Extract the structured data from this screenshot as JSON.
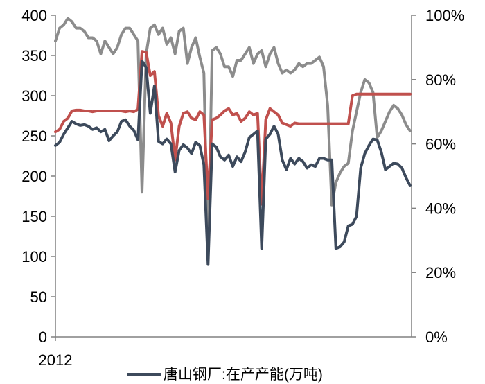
{
  "chart_data": {
    "type": "line",
    "title": "",
    "xlabel": "",
    "ylabel": "",
    "x_tick_labels": [
      "2012"
    ],
    "ylim_left": [
      0,
      400
    ],
    "yticks_left": [
      "0",
      "50",
      "100",
      "150",
      "200",
      "250",
      "300",
      "350",
      "400"
    ],
    "ylim_right": [
      0,
      1
    ],
    "yticks_right": [
      "0%",
      "20%",
      "40%",
      "60%",
      "80%",
      "100%"
    ],
    "grid": false,
    "legend": {
      "placement": "bottom",
      "entries": [
        "唐山钢厂:在产产能(万吨)"
      ]
    },
    "series": [
      {
        "name": "唐山钢厂:在产产能(万吨)",
        "axis": "left",
        "color": "#3d4a5c",
        "values": [
          238,
          242,
          252,
          260,
          268,
          265,
          263,
          264,
          262,
          258,
          260,
          255,
          258,
          244,
          250,
          255,
          268,
          270,
          262,
          257,
          245,
          343,
          335,
          278,
          312,
          243,
          240,
          246,
          240,
          205,
          232,
          239,
          235,
          228,
          242,
          238,
          214,
          90,
          240,
          236,
          224,
          220,
          226,
          212,
          224,
          218,
          230,
          248,
          252,
          256,
          110,
          246,
          252,
          262,
          252,
          220,
          208,
          222,
          215,
          222,
          218,
          210,
          214,
          212,
          222,
          222,
          220,
          220,
          110,
          112,
          118,
          138,
          140,
          150,
          210,
          228,
          238,
          246,
          245,
          230,
          208,
          212,
          216,
          215,
          210,
          198,
          188
        ]
      },
      {
        "name": "",
        "axis": "left",
        "color": "#c0504d",
        "values": [
          255,
          258,
          268,
          272,
          281,
          282,
          282,
          281,
          281,
          280,
          281,
          281,
          281,
          281,
          281,
          281,
          281,
          280,
          281,
          280,
          283,
          355,
          354,
          325,
          330,
          275,
          262,
          278,
          266,
          220,
          262,
          278,
          280,
          272,
          270,
          280,
          276,
          172,
          270,
          272,
          276,
          281,
          284,
          276,
          278,
          268,
          272,
          280,
          276,
          278,
          165,
          270,
          284,
          280,
          276,
          266,
          264,
          262,
          266,
          265,
          265,
          265,
          265,
          265,
          265,
          265,
          265,
          265,
          265,
          265,
          265,
          265,
          300,
          302,
          302,
          302,
          302,
          302,
          302,
          302,
          302,
          302,
          302,
          302,
          302,
          302,
          302
        ]
      },
      {
        "name": "",
        "axis": "right",
        "color": "#8c8c8c",
        "values": [
          0.92,
          0.96,
          0.97,
          0.99,
          0.98,
          0.96,
          0.96,
          0.95,
          0.93,
          0.93,
          0.92,
          0.88,
          0.92,
          0.9,
          0.88,
          0.9,
          0.94,
          0.96,
          0.96,
          0.94,
          0.92,
          0.45,
          0.88,
          0.96,
          0.97,
          0.94,
          0.96,
          0.91,
          0.93,
          0.88,
          0.95,
          0.96,
          0.85,
          0.9,
          0.93,
          0.87,
          0.82,
          0.24,
          0.89,
          0.9,
          0.88,
          0.84,
          0.84,
          0.81,
          0.86,
          0.86,
          0.88,
          0.9,
          0.85,
          0.88,
          0.89,
          0.84,
          0.88,
          0.9,
          0.85,
          0.82,
          0.83,
          0.82,
          0.83,
          0.85,
          0.84,
          0.85,
          0.85,
          0.86,
          0.87,
          0.84,
          0.72,
          0.41,
          0.48,
          0.51,
          0.53,
          0.54,
          0.64,
          0.7,
          0.76,
          0.8,
          0.79,
          0.76,
          0.62,
          0.64,
          0.67,
          0.7,
          0.72,
          0.71,
          0.69,
          0.66,
          0.64
        ]
      }
    ]
  }
}
